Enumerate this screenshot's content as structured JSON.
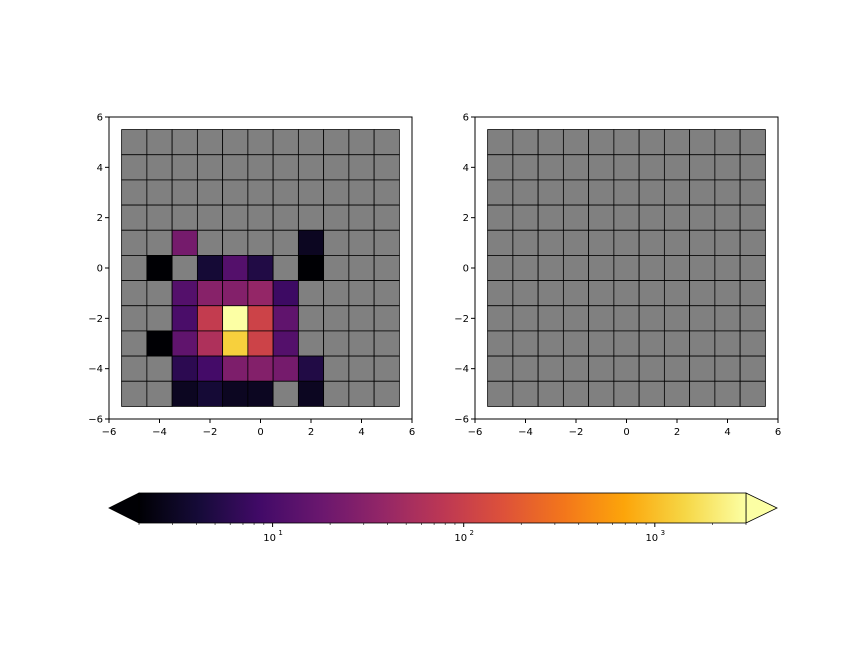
{
  "chart_data": [
    {
      "type": "heatmap",
      "title": "",
      "xlabel": "",
      "ylabel": "",
      "xlim": [
        -6,
        6
      ],
      "ylim": [
        -6,
        6
      ],
      "xticks": [
        "−6",
        "−4",
        "−2",
        "0",
        "2",
        "4",
        "6"
      ],
      "yticks": [
        "6",
        "4",
        "2",
        "0",
        "−2",
        "−4",
        "−6"
      ],
      "x_edges": [
        -5.5,
        -4.5,
        -3.5,
        -2.5,
        -1.5,
        -0.5,
        0.5,
        1.5,
        2.5,
        3.5,
        4.5,
        5.5
      ],
      "y_edges": [
        5.5,
        4.5,
        3.5,
        2.5,
        1.5,
        0.5,
        -0.5,
        -1.5,
        -2.5,
        -3.5,
        -4.5,
        -5.5
      ],
      "bad_color": "#808080",
      "scale": "log",
      "values": [
        [
          null,
          null,
          null,
          null,
          null,
          null,
          null,
          null,
          null,
          null,
          null
        ],
        [
          null,
          null,
          null,
          null,
          null,
          null,
          null,
          null,
          null,
          null,
          null
        ],
        [
          null,
          null,
          null,
          null,
          null,
          null,
          null,
          null,
          null,
          null,
          null
        ],
        [
          null,
          null,
          null,
          null,
          null,
          null,
          null,
          null,
          null,
          null,
          null
        ],
        [
          null,
          null,
          22,
          null,
          null,
          null,
          null,
          3,
          null,
          null,
          null
        ],
        [
          null,
          2,
          null,
          4,
          12,
          5,
          null,
          2,
          null,
          null,
          null
        ],
        [
          null,
          null,
          12,
          30,
          28,
          38,
          8,
          null,
          null,
          null,
          null
        ],
        [
          null,
          null,
          10,
          90,
          3000,
          110,
          15,
          null,
          null,
          null,
          null
        ],
        [
          null,
          2,
          15,
          60,
          1300,
          110,
          12,
          null,
          null,
          null,
          null
        ],
        [
          null,
          null,
          6,
          9,
          25,
          28,
          22,
          5,
          null,
          null,
          null
        ],
        [
          null,
          null,
          3,
          4,
          3,
          3,
          null,
          3,
          null,
          null,
          null
        ]
      ]
    },
    {
      "type": "heatmap",
      "title": "",
      "xlabel": "",
      "ylabel": "",
      "xlim": [
        -6,
        6
      ],
      "ylim": [
        -6,
        6
      ],
      "xticks": [
        "−6",
        "−4",
        "−2",
        "0",
        "2",
        "4",
        "6"
      ],
      "yticks": [
        "6",
        "4",
        "2",
        "0",
        "−2",
        "−4",
        "−6"
      ],
      "x_edges": [
        -5.5,
        -4.5,
        -3.5,
        -2.5,
        -1.5,
        -0.5,
        0.5,
        1.5,
        2.5,
        3.5,
        4.5,
        5.5
      ],
      "y_edges": [
        5.5,
        4.5,
        3.5,
        2.5,
        1.5,
        0.5,
        -0.5,
        -1.5,
        -2.5,
        -3.5,
        -4.5,
        -5.5
      ],
      "bad_color": "#808080",
      "scale": "log",
      "values": [
        [
          null,
          null,
          null,
          null,
          null,
          null,
          null,
          null,
          null,
          null,
          null
        ],
        [
          null,
          null,
          null,
          null,
          null,
          null,
          null,
          null,
          null,
          null,
          null
        ],
        [
          null,
          null,
          null,
          null,
          null,
          null,
          null,
          null,
          null,
          null,
          null
        ],
        [
          null,
          null,
          null,
          null,
          null,
          null,
          null,
          null,
          null,
          null,
          null
        ],
        [
          null,
          null,
          null,
          null,
          null,
          null,
          null,
          null,
          null,
          null,
          null
        ],
        [
          null,
          null,
          null,
          null,
          null,
          null,
          null,
          null,
          null,
          null,
          null
        ],
        [
          null,
          null,
          null,
          null,
          null,
          null,
          null,
          null,
          null,
          null,
          null
        ],
        [
          null,
          null,
          null,
          null,
          null,
          null,
          null,
          null,
          null,
          null,
          null
        ],
        [
          null,
          null,
          null,
          null,
          null,
          null,
          null,
          null,
          null,
          null,
          null
        ],
        [
          null,
          null,
          null,
          null,
          null,
          null,
          null,
          null,
          null,
          null,
          null
        ],
        [
          null,
          null,
          null,
          null,
          null,
          null,
          null,
          null,
          null,
          null,
          null
        ]
      ]
    }
  ],
  "colorbar": {
    "colormap": "inferno",
    "scale": "log",
    "vmin": 2,
    "vmax": 3000,
    "extend": "both",
    "orientation": "horizontal",
    "ticks": [
      {
        "value": 10,
        "base": "10",
        "exp": "1"
      },
      {
        "value": 100,
        "base": "10",
        "exp": "2"
      },
      {
        "value": 1000,
        "base": "10",
        "exp": "3"
      }
    ]
  }
}
